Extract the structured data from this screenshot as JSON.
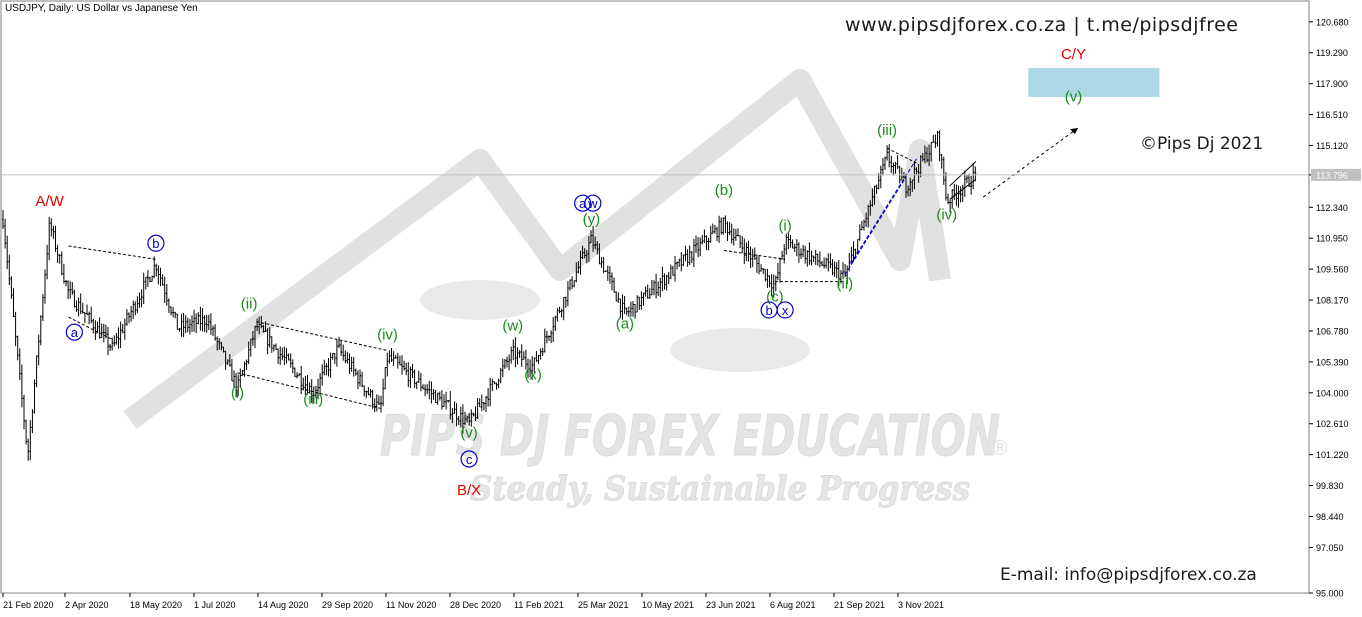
{
  "chart_title": "USDJPY, Daily:  US Dollar vs Japanese Yen",
  "header_text": "www.pipsdjforex.co.za  |  t.me/pipsdjfree",
  "copyright": "©Pips Dj 2021",
  "email": "E-mail: info@pipsdjforex.co.za",
  "watermark": {
    "line1": "PIPS DJ FOREX EDUCATION",
    "line2": "Steady, Sustainable Progress",
    "mark": "®"
  },
  "colors": {
    "bars": "#000000",
    "wave_green": "#1a8c1a",
    "wave_red": "#e00000",
    "wave_blue": "#0000cc",
    "target_zone": "#add8e6",
    "grid": "#c0c0c0"
  },
  "chart_data": {
    "type": "bar",
    "symbol": "USDJPY",
    "timeframe": "Daily",
    "ylim": [
      95.0,
      121.3
    ],
    "y_ticks": [
      "120.680",
      "119.290",
      "117.900",
      "116.510",
      "115.120",
      "113.796",
      "112.340",
      "110.950",
      "109.560",
      "108.170",
      "106.780",
      "105.390",
      "104.000",
      "102.610",
      "101.220",
      "99.830",
      "98.440",
      "97.050",
      "95.000"
    ],
    "current_price": "113.796",
    "x_ticks": [
      "21 Feb 2020",
      "2 Apr 2020",
      "18 May 2020",
      "1 Jul 2020",
      "14 Aug 2020",
      "29 Sep 2020",
      "11 Nov 2020",
      "28 Dec 2020",
      "11 Feb 2021",
      "25 Mar 2021",
      "10 May 2021",
      "23 Jun 2021",
      "6 Aug 2021",
      "21 Sep 2021",
      "3 Nov 2021"
    ],
    "price_path": [
      {
        "date": "2020-02-21",
        "price": 111.8
      },
      {
        "date": "2020-03-09",
        "price": 101.2
      },
      {
        "date": "2020-03-24",
        "price": 111.6
      },
      {
        "date": "2020-04-06",
        "price": 108.5
      },
      {
        "date": "2020-05-06",
        "price": 106.0
      },
      {
        "date": "2020-06-05",
        "price": 109.8
      },
      {
        "date": "2020-06-20",
        "price": 106.9
      },
      {
        "date": "2020-07-10",
        "price": 107.3
      },
      {
        "date": "2020-07-31",
        "price": 104.2
      },
      {
        "date": "2020-08-13",
        "price": 107.0
      },
      {
        "date": "2020-09-21",
        "price": 104.0
      },
      {
        "date": "2020-10-08",
        "price": 106.0
      },
      {
        "date": "2020-11-06",
        "price": 103.2
      },
      {
        "date": "2020-11-11",
        "price": 105.6
      },
      {
        "date": "2021-01-06",
        "price": 102.6
      },
      {
        "date": "2021-02-05",
        "price": 105.8
      },
      {
        "date": "2021-02-19",
        "price": 105.2
      },
      {
        "date": "2021-03-31",
        "price": 110.9
      },
      {
        "date": "2021-04-23",
        "price": 107.5
      },
      {
        "date": "2021-06-30",
        "price": 111.6
      },
      {
        "date": "2021-08-04",
        "price": 108.8
      },
      {
        "date": "2021-08-11",
        "price": 110.8
      },
      {
        "date": "2021-09-21",
        "price": 109.2
      },
      {
        "date": "2021-10-20",
        "price": 114.6
      },
      {
        "date": "2021-11-02",
        "price": 113.3
      },
      {
        "date": "2021-11-24",
        "price": 115.5
      },
      {
        "date": "2021-11-30",
        "price": 112.6
      },
      {
        "date": "2021-12-20",
        "price": 113.8
      }
    ],
    "target_zone": {
      "from_date": "2022-01-25",
      "to_date": "2022-04-25",
      "low": 117.3,
      "high": 118.6
    },
    "wave_labels": [
      {
        "text": "A/W",
        "date": "2020-03-24",
        "price": 112.4,
        "style": "red"
      },
      {
        "text": "a",
        "date": "2020-04-10",
        "price": 106.5,
        "style": "blue-circle"
      },
      {
        "text": "b",
        "date": "2020-06-05",
        "price": 110.5,
        "style": "blue-circle"
      },
      {
        "text": "(ii)",
        "date": "2020-08-08",
        "price": 107.8,
        "style": "green"
      },
      {
        "text": "(i)",
        "date": "2020-07-31",
        "price": 103.8,
        "style": "green"
      },
      {
        "text": "(iii)",
        "date": "2020-09-21",
        "price": 103.5,
        "style": "green"
      },
      {
        "text": "(iv)",
        "date": "2020-11-11",
        "price": 106.4,
        "style": "green"
      },
      {
        "text": "(v)",
        "date": "2021-01-06",
        "price": 102.0,
        "style": "green"
      },
      {
        "text": "c",
        "date": "2021-01-06",
        "price": 100.8,
        "style": "blue-circle"
      },
      {
        "text": "B/X",
        "date": "2021-01-06",
        "price": 99.4,
        "style": "red"
      },
      {
        "text": "(w)",
        "date": "2021-02-05",
        "price": 106.8,
        "style": "green"
      },
      {
        "text": "(x)",
        "date": "2021-02-19",
        "price": 104.6,
        "style": "green"
      },
      {
        "text": "a",
        "date": "2021-03-25",
        "price": 112.3,
        "style": "blue-circle"
      },
      {
        "text": "w",
        "date": "2021-04-01",
        "price": 112.3,
        "style": "blue-circle"
      },
      {
        "text": "(y)",
        "date": "2021-03-31",
        "price": 111.6,
        "style": "green"
      },
      {
        "text": "(a)",
        "date": "2021-04-23",
        "price": 106.9,
        "style": "green"
      },
      {
        "text": "(b)",
        "date": "2021-06-30",
        "price": 112.9,
        "style": "green"
      },
      {
        "text": "(i)",
        "date": "2021-08-11",
        "price": 111.3,
        "style": "green"
      },
      {
        "text": "(c)",
        "date": "2021-08-04",
        "price": 108.1,
        "style": "green"
      },
      {
        "text": "b",
        "date": "2021-07-31",
        "price": 107.5,
        "style": "blue-circle"
      },
      {
        "text": "x",
        "date": "2021-08-11",
        "price": 107.5,
        "style": "blue-circle"
      },
      {
        "text": "(ii)",
        "date": "2021-09-21",
        "price": 108.7,
        "style": "green"
      },
      {
        "text": "(iii)",
        "date": "2021-10-20",
        "price": 115.6,
        "style": "green"
      },
      {
        "text": "(iv)",
        "date": "2021-11-30",
        "price": 111.8,
        "style": "green"
      },
      {
        "text": "C/Y",
        "date": "2022-02-25",
        "price": 119.0,
        "style": "red"
      },
      {
        "text": "(v)",
        "date": "2022-02-25",
        "price": 117.1,
        "style": "green"
      }
    ]
  }
}
